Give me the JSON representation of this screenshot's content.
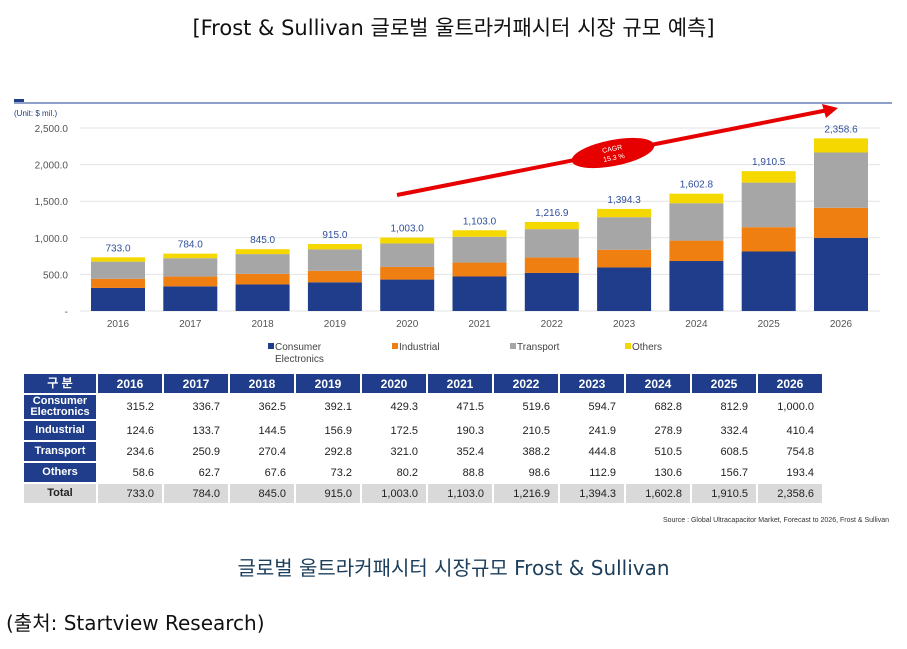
{
  "title": "[Frost & Sullivan 글로벌 울트라커패시터 시장 규모 예측]",
  "caption": "글로벌 울트라커패시터 시장규모 Frost & Sullivan",
  "credit": "(출처: Startview Research)",
  "source": "Source : Global Ultracapacitor Market, Forecast to 2026, Frost & Sullivan",
  "chart_data": {
    "type": "bar",
    "stacked": true,
    "unit_label": "(Unit: $ mil.)",
    "categories": [
      "2016",
      "2017",
      "2018",
      "2019",
      "2020",
      "2021",
      "2022",
      "2023",
      "2024",
      "2025",
      "2026"
    ],
    "series": [
      {
        "name": "Consumer Electronics",
        "color": "#1f3d8a",
        "values": [
          315.2,
          336.7,
          362.5,
          392.1,
          429.3,
          471.5,
          519.6,
          594.7,
          682.8,
          812.9,
          1000.0
        ]
      },
      {
        "name": "Industrial",
        "color": "#f07f12",
        "values": [
          124.6,
          133.7,
          144.5,
          156.9,
          172.5,
          190.3,
          210.5,
          241.9,
          278.9,
          332.4,
          410.4
        ]
      },
      {
        "name": "Transport",
        "color": "#a6a6a6",
        "values": [
          234.6,
          250.9,
          270.4,
          292.8,
          321.0,
          352.4,
          388.2,
          444.8,
          510.5,
          608.5,
          754.8
        ]
      },
      {
        "name": "Others",
        "color": "#f5d800",
        "values": [
          58.6,
          62.7,
          67.6,
          73.2,
          80.2,
          88.8,
          98.6,
          112.9,
          130.6,
          156.7,
          193.4
        ]
      }
    ],
    "totals": [
      "733.0",
      "784.0",
      "845.0",
      "915.0",
      "1,003.0",
      "1,103.0",
      "1,216.9",
      "1,394.3",
      "1,602.8",
      "1,910.5",
      "2,358.6"
    ],
    "yticks": [
      "-",
      "500.0",
      "1,000.0",
      "1,500.0",
      "2,000.0",
      "2,500.0"
    ],
    "ylim": [
      0,
      2500
    ],
    "annotation": {
      "label1": "CAGR",
      "label2": "15.3 %"
    },
    "legend_position": "bottom",
    "table": {
      "corner": "구 분",
      "row_labels": [
        "Consumer Electronics",
        "Industrial",
        "Transport",
        "Others",
        "Total"
      ],
      "values": [
        [
          "315.2",
          "336.7",
          "362.5",
          "392.1",
          "429.3",
          "471.5",
          "519.6",
          "594.7",
          "682.8",
          "812.9",
          "1,000.0"
        ],
        [
          "124.6",
          "133.7",
          "144.5",
          "156.9",
          "172.5",
          "190.3",
          "210.5",
          "241.9",
          "278.9",
          "332.4",
          "410.4"
        ],
        [
          "234.6",
          "250.9",
          "270.4",
          "292.8",
          "321.0",
          "352.4",
          "388.2",
          "444.8",
          "510.5",
          "608.5",
          "754.8"
        ],
        [
          "58.6",
          "62.7",
          "67.6",
          "73.2",
          "80.2",
          "88.8",
          "98.6",
          "112.9",
          "130.6",
          "156.7",
          "193.4"
        ],
        [
          "733.0",
          "784.0",
          "845.0",
          "915.0",
          "1,003.0",
          "1,103.0",
          "1,216.9",
          "1,394.3",
          "1,602.8",
          "1,910.5",
          "2,358.6"
        ]
      ]
    }
  }
}
